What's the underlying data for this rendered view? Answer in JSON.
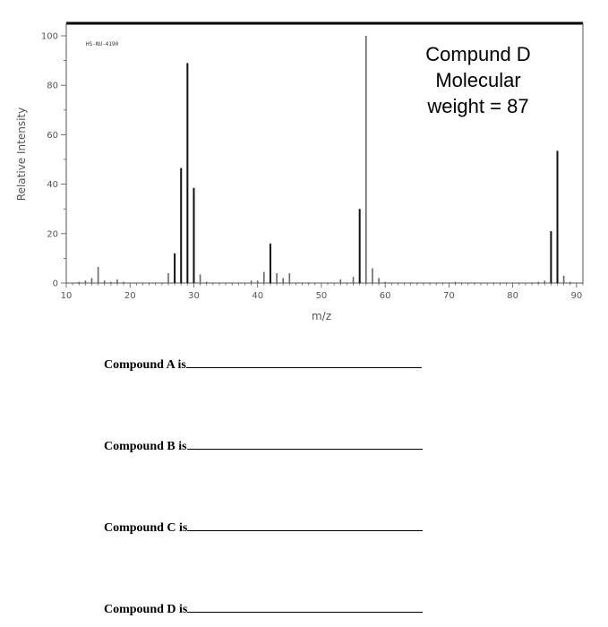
{
  "chart_data": {
    "type": "bar",
    "code_label": "HS-NU-4190",
    "xlabel": "m/z",
    "ylabel": "Relative Intensity",
    "xlim": [
      10,
      91
    ],
    "ylim": [
      0,
      100
    ],
    "x_ticks": [
      "10",
      "20",
      "30",
      "40",
      "50",
      "60",
      "70",
      "80",
      "90"
    ],
    "y_ticks": [
      "0",
      "20",
      "40",
      "60",
      "80",
      "100"
    ],
    "annotation": [
      "Compund D",
      "Molecular",
      "weight = 87"
    ],
    "peaks": [
      {
        "mz": 12,
        "intensity": 0.5
      },
      {
        "mz": 13,
        "intensity": 1
      },
      {
        "mz": 14,
        "intensity": 2
      },
      {
        "mz": 15,
        "intensity": 6.5
      },
      {
        "mz": 16,
        "intensity": 1
      },
      {
        "mz": 17,
        "intensity": 0.5
      },
      {
        "mz": 18,
        "intensity": 1.5
      },
      {
        "mz": 19,
        "intensity": 0.5
      },
      {
        "mz": 26,
        "intensity": 4
      },
      {
        "mz": 27,
        "intensity": 12
      },
      {
        "mz": 28,
        "intensity": 46.5
      },
      {
        "mz": 29,
        "intensity": 89
      },
      {
        "mz": 30,
        "intensity": 38.5
      },
      {
        "mz": 31,
        "intensity": 3.5
      },
      {
        "mz": 32,
        "intensity": 0.5
      },
      {
        "mz": 39,
        "intensity": 1
      },
      {
        "mz": 40,
        "intensity": 1
      },
      {
        "mz": 41,
        "intensity": 4.5
      },
      {
        "mz": 42,
        "intensity": 16
      },
      {
        "mz": 43,
        "intensity": 4
      },
      {
        "mz": 44,
        "intensity": 2
      },
      {
        "mz": 45,
        "intensity": 4
      },
      {
        "mz": 53,
        "intensity": 1.5
      },
      {
        "mz": 55,
        "intensity": 2.5
      },
      {
        "mz": 56,
        "intensity": 30
      },
      {
        "mz": 57,
        "intensity": 100
      },
      {
        "mz": 58,
        "intensity": 6
      },
      {
        "mz": 59,
        "intensity": 2
      },
      {
        "mz": 60,
        "intensity": 0.5
      },
      {
        "mz": 71,
        "intensity": 0.5
      },
      {
        "mz": 84,
        "intensity": 0.5
      },
      {
        "mz": 85,
        "intensity": 1
      },
      {
        "mz": 86,
        "intensity": 21
      },
      {
        "mz": 87,
        "intensity": 53.5
      },
      {
        "mz": 88,
        "intensity": 3
      },
      {
        "mz": 89,
        "intensity": 0.5
      }
    ]
  },
  "questions": [
    {
      "label": "Compound A is"
    },
    {
      "label": "Compound B is"
    },
    {
      "label": "Compound C is"
    },
    {
      "label": "Compound D is"
    }
  ]
}
